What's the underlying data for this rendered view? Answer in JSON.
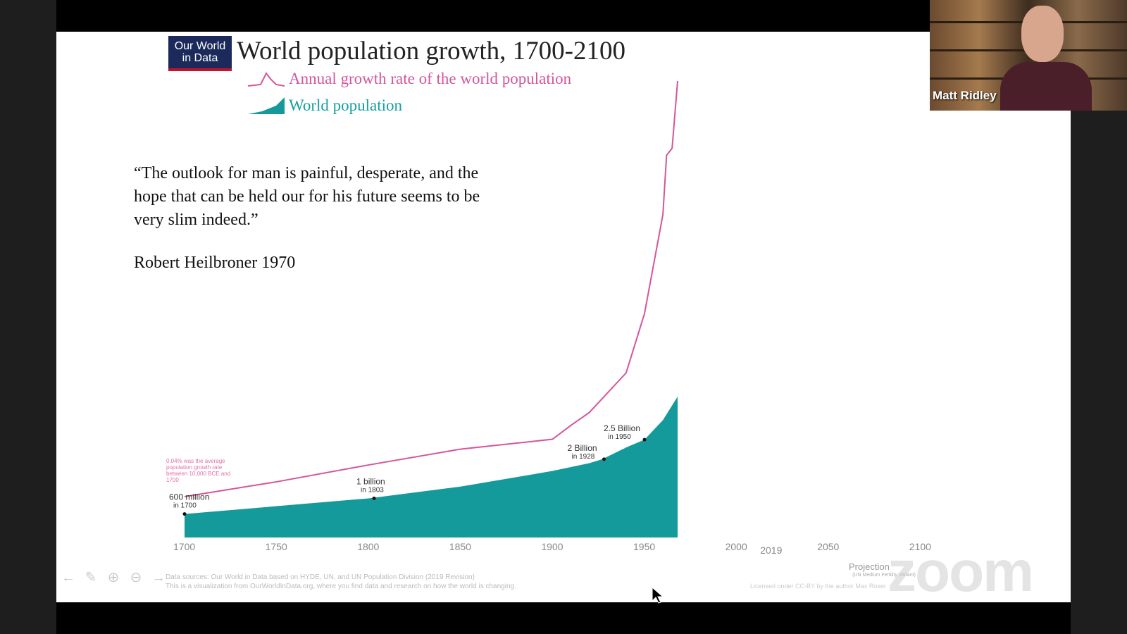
{
  "slide": {
    "logo_line1": "Our World",
    "logo_line2": "in Data",
    "title": "World population growth, 1700-2100",
    "legend_rate": "Annual growth rate of the world population",
    "legend_population": "World population",
    "quote": "“The outlook for man is painful, desperate, and the hope that can be held our for his future  seems to be very slim indeed.”",
    "quote_author": "Robert Heilbroner 1970",
    "projection_label": "Projection",
    "projection_sub": "(UN Medium Fertility Variant)",
    "footer_sources": "Data sources: Our World in Data based on HYDE, UN, and UN Population Division (2019 Revision)",
    "footer_sources_line2": "This is a visualization from OurWorldInData.org, where you find data and research on how the world is changing.",
    "footer_license": "Licensed under CC-BY by the author Max Roser",
    "colors": {
      "rate": "#d4569a",
      "population": "#159a9c",
      "title": "#222222"
    }
  },
  "chart_data": {
    "type": "area",
    "x_ticks": [
      "1700",
      "1750",
      "1800",
      "1850",
      "1900",
      "1950",
      "2000",
      "2019",
      "2050",
      "2100"
    ],
    "series": [
      {
        "name": "Annual growth rate of the world population",
        "type": "line",
        "x": [
          1700,
          1750,
          1800,
          1850,
          1900,
          1910,
          1920,
          1940,
          1950,
          1960,
          1962,
          1965,
          1968
        ],
        "values": [
          0.1,
          0.25,
          0.42,
          0.58,
          0.68,
          0.82,
          0.95,
          1.35,
          1.95,
          2.95,
          3.55,
          3.62,
          4.3
        ]
      },
      {
        "name": "World population",
        "type": "area",
        "x": [
          1700,
          1750,
          1800,
          1850,
          1900,
          1920,
          1927,
          1940,
          1950,
          1960,
          1968
        ],
        "values": [
          0.6,
          0.8,
          1.0,
          1.3,
          1.7,
          1.9,
          2.0,
          2.3,
          2.5,
          3.0,
          3.6
        ]
      }
    ],
    "annotations": [
      {
        "label": "600 million",
        "sub": "in 1700",
        "x": 1700,
        "y": 0.6
      },
      {
        "label": "1 billion",
        "sub": "in 1803",
        "x": 1803,
        "y": 1.0
      },
      {
        "label": "2 Billion",
        "sub": "in 1928",
        "x": 1928,
        "y": 2.0
      },
      {
        "label": "2.5 Billion",
        "sub": "in 1950",
        "x": 1950,
        "y": 2.5
      }
    ],
    "rate_note": "0.04% was the average population growth rate between 10,000 BCE and 1700"
  },
  "video": {
    "speaker_name": "Matt Ridley"
  },
  "watermark": "zoom",
  "toolbar": {
    "prev_icon": "←",
    "pen_icon": "✎",
    "zoom_in_icon": "⊕",
    "zoom_out_icon": "⊖",
    "next_icon": "→"
  }
}
